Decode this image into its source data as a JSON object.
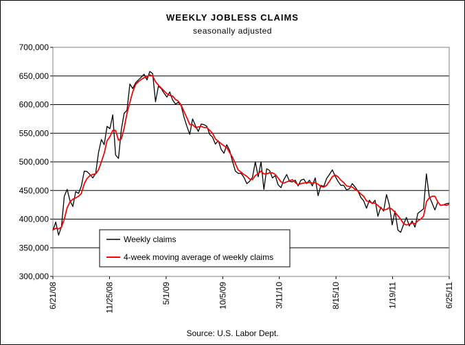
{
  "chart_data": {
    "type": "line",
    "title": "WEEKLY JOBLESS CLAIMS",
    "subtitle": "seasonally adjusted",
    "source": "Source: U.S. Labor Dept.",
    "xlabel": "",
    "ylabel": "",
    "ylim": [
      300000,
      700000
    ],
    "grid": "horizontal",
    "y_ticks": [
      "300,000",
      "350,000",
      "400,000",
      "450,000",
      "500,000",
      "550,000",
      "600,000",
      "650,000",
      "700,000"
    ],
    "x_ticks": [
      "6/21/08",
      "11/25/08",
      "5/1/09",
      "10/5/09",
      "3/11/10",
      "8/15/10",
      "1/19/11",
      "6/25/11"
    ],
    "legend_position": "lower-left",
    "series": [
      {
        "name": "Weekly claims",
        "color": "#000000",
        "values": [
          380000,
          395000,
          372000,
          387000,
          440000,
          452000,
          432000,
          422000,
          448000,
          445000,
          458000,
          484000,
          483000,
          478000,
          472000,
          480000,
          516000,
          539000,
          530000,
          562000,
          558000,
          582000,
          512000,
          506000,
          556000,
          585000,
          590000,
          636000,
          628000,
          638000,
          643000,
          648000,
          653000,
          643000,
          658000,
          654000,
          605000,
          632000,
          628000,
          620000,
          613000,
          622000,
          608000,
          601000,
          604000,
          598000,
          578000,
          562000,
          548000,
          575000,
          563000,
          553000,
          566000,
          565000,
          562000,
          548000,
          543000,
          531000,
          537000,
          522000,
          515000,
          530000,
          520000,
          501000,
          484000,
          480000,
          480000,
          473000,
          462000,
          466000,
          473000,
          500000,
          474000,
          500000,
          452000,
          488000,
          485000,
          472000,
          476000,
          460000,
          455000,
          469000,
          478000,
          466000,
          465000,
          468000,
          458000,
          468000,
          470000,
          462000,
          468000,
          458000,
          472000,
          441000,
          459000,
          457000,
          471000,
          478000,
          486000,
          475000,
          466000,
          459000,
          459000,
          451000,
          453000,
          462000,
          456000,
          449000,
          438000,
          432000,
          419000,
          433000,
          427000,
          433000,
          405000,
          421000,
          414000,
          443000,
          425000,
          390000,
          414000,
          381000,
          377000,
          391000,
          403000,
          388000,
          397000,
          386000,
          410000,
          414000,
          418000,
          479000,
          440000,
          428000,
          416000,
          430000,
          424000,
          425000,
          427000,
          428000
        ]
      },
      {
        "name": "4-week moving average of weekly claims",
        "color": "#ff0000",
        "values": [
          381000,
          384000,
          383000,
          386000,
          400000,
          420000,
          430000,
          435000,
          437000,
          440000,
          445000,
          462000,
          471000,
          476000,
          478000,
          479000,
          486000,
          500000,
          515000,
          537000,
          544000,
          555000,
          555000,
          538000,
          540000,
          559000,
          585000,
          604000,
          622000,
          635000,
          640000,
          644000,
          647000,
          648000,
          652000,
          650000,
          640000,
          634000,
          629000,
          624000,
          619000,
          616000,
          615000,
          609000,
          606000,
          599000,
          588000,
          577000,
          565000,
          565000,
          560000,
          561000,
          562000,
          560000,
          560000,
          555000,
          550000,
          540000,
          536000,
          532000,
          528000,
          525000,
          516000,
          508000,
          497000,
          486000,
          482000,
          478000,
          475000,
          470000,
          469000,
          476000,
          479000,
          484000,
          479000,
          479000,
          481000,
          481000,
          478000,
          472000,
          465000,
          463000,
          465000,
          467000,
          469000,
          464000,
          460000,
          462000,
          463000,
          464000,
          464000,
          463000,
          464000,
          461000,
          457000,
          456000,
          459000,
          466000,
          474000,
          477000,
          474000,
          468000,
          464000,
          458000,
          457000,
          456000,
          452000,
          449000,
          444000,
          440000,
          432000,
          430000,
          428000,
          428000,
          424000,
          419000,
          416000,
          417000,
          420000,
          417000,
          412000,
          406000,
          400000,
          392000,
          390000,
          391000,
          393000,
          392000,
          397000,
          400000,
          405000,
          430000,
          437000,
          440000,
          440000,
          430000,
          424000,
          425000,
          424000,
          426000
        ]
      }
    ]
  }
}
